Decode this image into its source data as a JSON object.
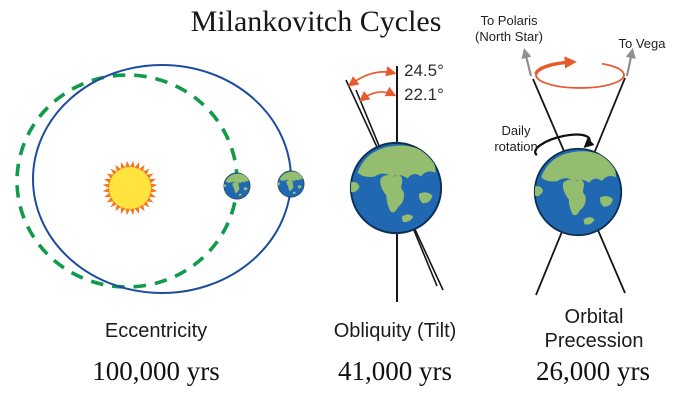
{
  "title": "Milankovitch Cycles",
  "colors": {
    "green_orbit": "#0f9b4a",
    "blue_orbit": "#1d4e9e",
    "sun_body": "#ffe43d",
    "sun_rays": "#f4791f",
    "orange_arrow": "#e65c2e",
    "gray_arrow": "#8f8f8f",
    "axis_line": "#161616",
    "earth_ocean": "#2069b2",
    "earth_land": "#95bd70",
    "earth_outline": "#0d2f52"
  },
  "panels": {
    "eccentricity": {
      "label": "Eccentricity",
      "period": "100,000 yrs"
    },
    "obliquity": {
      "label": "Obliquity (Tilt)",
      "period": "41,000 yrs",
      "max_tilt": "24.5°",
      "min_tilt": "22.1°"
    },
    "precession": {
      "label": "Orbital Precession",
      "period": "26,000 yrs",
      "to_polaris": "To Polaris (North Star)",
      "to_vega": "To Vega",
      "daily_rotation": "Daily rotation"
    }
  }
}
